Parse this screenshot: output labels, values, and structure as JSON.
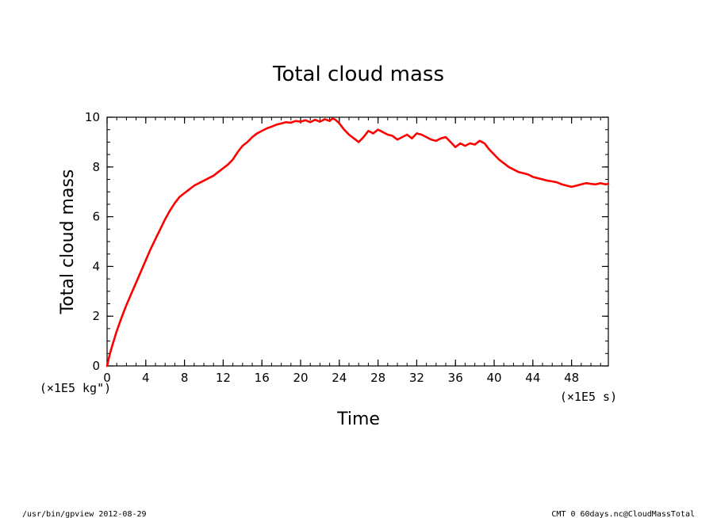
{
  "chart_data": {
    "type": "line",
    "title": "Total cloud mass",
    "xlabel": "Time",
    "ylabel": "Total cloud mass",
    "x_unit": "(×1E5 s)",
    "y_unit": "(×1E5 kg\")",
    "xlim": [
      0,
      51.8
    ],
    "ylim": [
      0,
      10
    ],
    "x_ticks": [
      0,
      4,
      8,
      12,
      16,
      20,
      24,
      28,
      32,
      36,
      40,
      44,
      48
    ],
    "x_tick_labels": [
      "0",
      "4",
      "8",
      "12",
      "16",
      "20",
      "24",
      "28",
      "32",
      "36",
      "40",
      "44",
      "48"
    ],
    "y_ticks": [
      0,
      2,
      4,
      6,
      8,
      10
    ],
    "y_tick_labels": [
      "0",
      "2",
      "4",
      "6",
      "8",
      "10"
    ],
    "grid": false,
    "series": [
      {
        "color": "#ff0000",
        "x": [
          0,
          0.3,
          0.6,
          1,
          1.5,
          2,
          2.5,
          3,
          3.5,
          4,
          4.5,
          5,
          5.5,
          6,
          6.5,
          7,
          7.5,
          8,
          8.5,
          9,
          9.5,
          10,
          10.5,
          11,
          11.5,
          12,
          12.5,
          13,
          13.5,
          13.8,
          14,
          14.5,
          15,
          15.5,
          16,
          16.5,
          17,
          17.5,
          18,
          18.5,
          19,
          19.5,
          20,
          20.5,
          21,
          21.5,
          22,
          22.5,
          23,
          23.3,
          23.6,
          24,
          24.5,
          25,
          25.5,
          26,
          26.5,
          27,
          27.5,
          28,
          28.5,
          29,
          29.5,
          30,
          30.5,
          31,
          31.5,
          32,
          32.5,
          33,
          33.5,
          34,
          34.5,
          35,
          35.5,
          36,
          36.5,
          37,
          37.5,
          38,
          38.5,
          39,
          39.5,
          40,
          40.5,
          41,
          41.5,
          42,
          42.5,
          43,
          43.5,
          44,
          44.5,
          45,
          45.5,
          46,
          46.5,
          47,
          47.5,
          48,
          48.5,
          49,
          49.5,
          50,
          50.5,
          51,
          51.5,
          51.8
        ],
        "y": [
          0,
          0.5,
          0.9,
          1.4,
          1.95,
          2.45,
          2.9,
          3.35,
          3.8,
          4.25,
          4.7,
          5.1,
          5.5,
          5.9,
          6.25,
          6.55,
          6.8,
          6.95,
          7.1,
          7.25,
          7.35,
          7.45,
          7.55,
          7.65,
          7.8,
          7.95,
          8.1,
          8.3,
          8.6,
          8.75,
          8.85,
          9.0,
          9.2,
          9.35,
          9.45,
          9.55,
          9.62,
          9.7,
          9.75,
          9.8,
          9.78,
          9.85,
          9.82,
          9.88,
          9.8,
          9.9,
          9.82,
          9.92,
          9.85,
          9.95,
          9.9,
          9.75,
          9.5,
          9.3,
          9.15,
          9.0,
          9.2,
          9.45,
          9.35,
          9.5,
          9.4,
          9.3,
          9.25,
          9.1,
          9.2,
          9.3,
          9.15,
          9.35,
          9.3,
          9.2,
          9.1,
          9.05,
          9.15,
          9.2,
          9.0,
          8.8,
          8.95,
          8.85,
          8.95,
          8.9,
          9.05,
          8.95,
          8.7,
          8.5,
          8.3,
          8.15,
          8.0,
          7.9,
          7.8,
          7.75,
          7.7,
          7.6,
          7.55,
          7.5,
          7.45,
          7.42,
          7.38,
          7.3,
          7.25,
          7.2,
          7.25,
          7.3,
          7.35,
          7.32,
          7.3,
          7.35,
          7.3,
          7.32
        ]
      }
    ]
  },
  "footer": {
    "left": "/usr/bin/gpview  2012-08-29",
    "right": "CMT_0_60days.nc@CloudMassTotal"
  }
}
